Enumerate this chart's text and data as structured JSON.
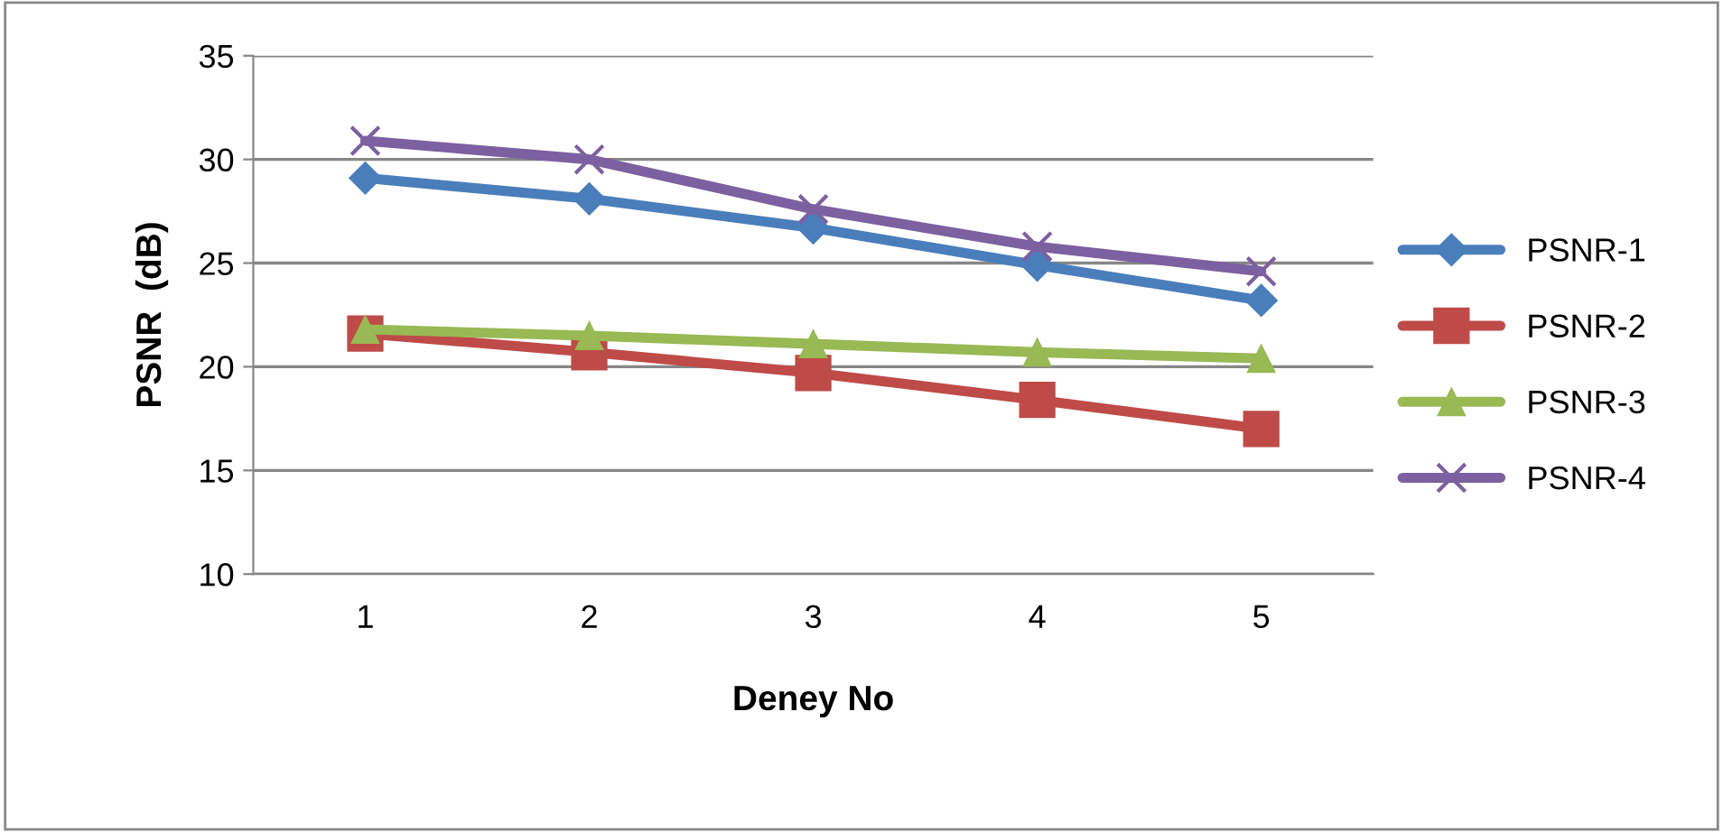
{
  "chart_data": {
    "type": "line",
    "xlabel": "Deney No",
    "ylabel": "PSNR  (dB)",
    "categories": [
      "1",
      "2",
      "3",
      "4",
      "5"
    ],
    "series": [
      {
        "name": "PSNR-1",
        "color": "#4a7ebb",
        "marker": "diamond",
        "values": [
          29.1,
          28.1,
          26.7,
          24.9,
          23.2
        ]
      },
      {
        "name": "PSNR-2",
        "color": "#be4b48",
        "marker": "square",
        "values": [
          21.6,
          20.7,
          19.7,
          18.4,
          17.0
        ]
      },
      {
        "name": "PSNR-3",
        "color": "#98b954",
        "marker": "triangle",
        "values": [
          21.8,
          21.5,
          21.1,
          20.7,
          20.4
        ]
      },
      {
        "name": "PSNR-4",
        "color": "#7d60a0",
        "marker": "cross",
        "values": [
          30.9,
          30.0,
          27.6,
          25.8,
          24.6
        ]
      }
    ],
    "ylim": [
      10,
      35
    ],
    "yticks": [
      10,
      15,
      20,
      25,
      30,
      35
    ],
    "grid": "y",
    "legend": "right",
    "line_style": "solid"
  }
}
